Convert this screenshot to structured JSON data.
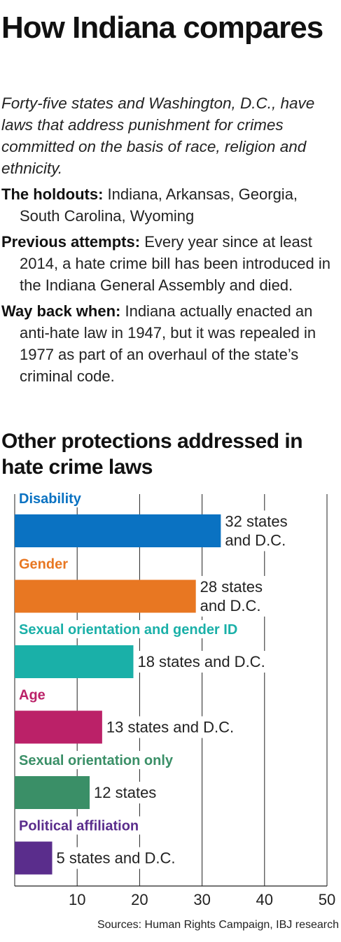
{
  "title": "How Indiana compares",
  "intro": "Forty-five states and Washington, D.C., have laws that address punishment for crimes committed on the basis of race, religion and ethnicity.",
  "facts": [
    {
      "lead": "The holdouts:",
      "text": "Indiana, Arkansas, Georgia, South Carolina, Wyoming"
    },
    {
      "lead": "Previous attempts:",
      "text": "Every year since at least 2014, a hate crime bill has been introduced in the Indiana General Assembly and died."
    },
    {
      "lead": "Way back when:",
      "text": "Indiana actually enacted an anti-hate law in 1947, but it was repealed in 1977 as part of an overhaul of the state’s criminal code."
    }
  ],
  "chart_title": "Other protections addressed in hate crime laws",
  "source": "Sources: Human Rights Campaign, IBJ research",
  "chart_data": {
    "type": "bar",
    "orientation": "horizontal",
    "title": "Other protections addressed in hate crime laws",
    "categories": [
      "Disability",
      "Gender",
      "Sexual orientation and gender ID",
      "Age",
      "Sexual orientation only",
      "Political affiliation"
    ],
    "values": [
      33,
      29,
      19,
      14,
      12,
      6
    ],
    "data_labels": [
      [
        "32 states",
        "and D.C."
      ],
      [
        "28 states",
        "and D.C."
      ],
      [
        "18 states and D.C."
      ],
      [
        "13 states and D.C."
      ],
      [
        "12 states"
      ],
      [
        "5 states and D.C."
      ]
    ],
    "colors": [
      "#0a72c2",
      "#e87722",
      "#1ab0a8",
      "#bb2168",
      "#3a8f67",
      "#5a2d8c"
    ],
    "xticks": [
      10,
      20,
      30,
      40,
      50
    ],
    "xlim": [
      0,
      50
    ],
    "grid": true
  }
}
